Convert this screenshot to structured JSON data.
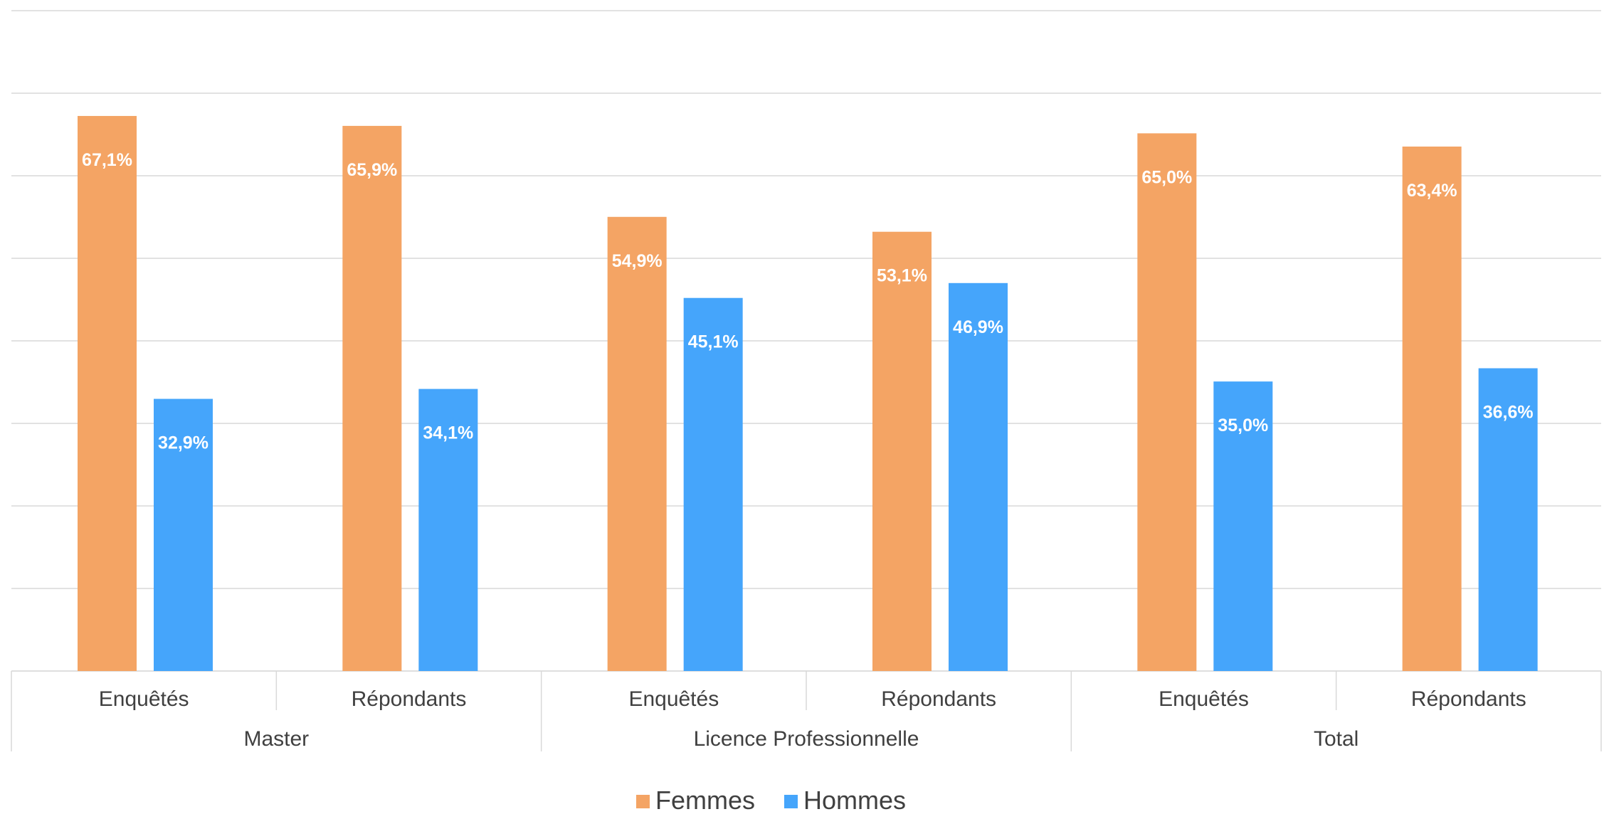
{
  "chart_data": {
    "type": "bar",
    "categories": [
      {
        "group": "Master",
        "label": "Enquêtés"
      },
      {
        "group": "Master",
        "label": "Répondants"
      },
      {
        "group": "Licence Professionnelle",
        "label": "Enquêtés"
      },
      {
        "group": "Licence Professionnelle",
        "label": "Répondants"
      },
      {
        "group": "Total",
        "label": "Enquêtés"
      },
      {
        "group": "Total",
        "label": "Répondants"
      }
    ],
    "groups": [
      "Master",
      "Licence Professionnelle",
      "Total"
    ],
    "series": [
      {
        "name": "Femmes",
        "color": "#F4A464",
        "values": [
          67.1,
          65.9,
          54.9,
          53.1,
          65.0,
          63.4
        ],
        "labels": [
          "67,1%",
          "65,9%",
          "54,9%",
          "53,1%",
          "65,0%",
          "63,4%"
        ]
      },
      {
        "name": "Hommes",
        "color": "#45A5FB",
        "values": [
          32.9,
          34.1,
          45.1,
          46.9,
          35.0,
          36.6
        ],
        "labels": [
          "32,9%",
          "34,1%",
          "45,1%",
          "46,9%",
          "35,0%",
          "36,6%"
        ]
      }
    ],
    "ylim": [
      0,
      80
    ],
    "grid": true,
    "legend_position": "bottom",
    "title": "",
    "xlabel": "",
    "ylabel": ""
  }
}
